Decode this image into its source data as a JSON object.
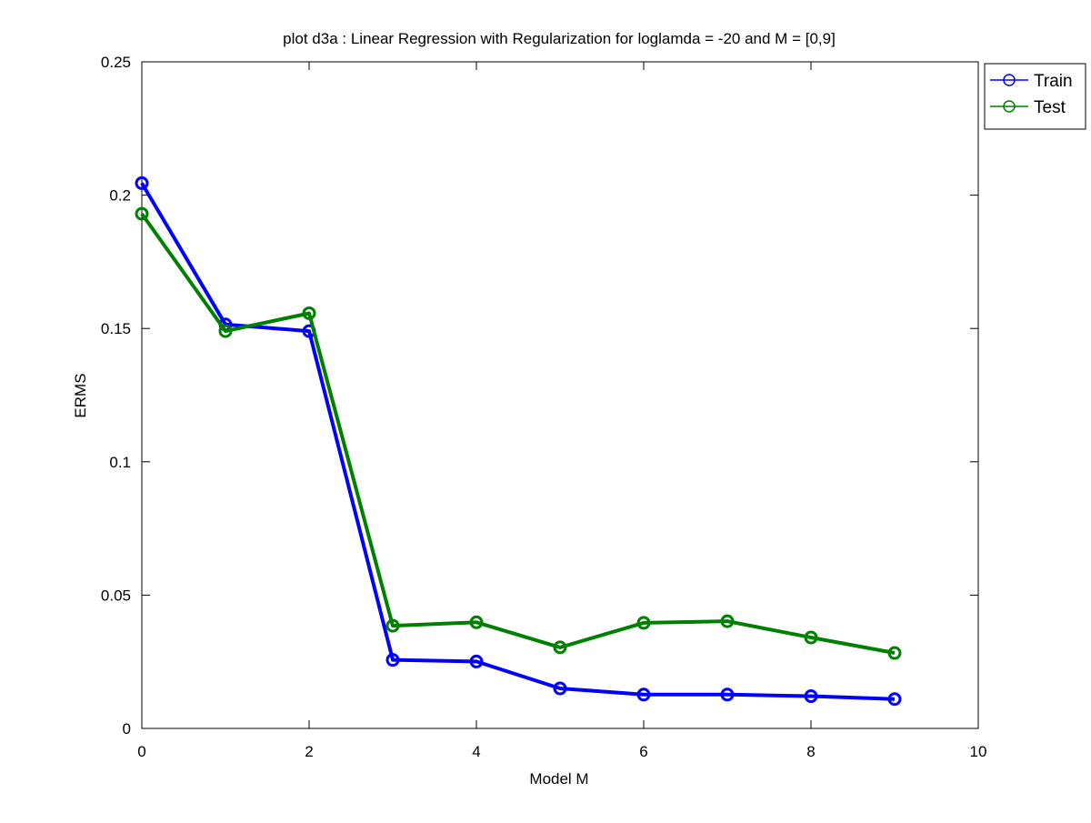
{
  "chart_data": {
    "type": "line",
    "title": "plot d3a : Linear Regression with Regularization for loglamda = -20 and M = [0,9]",
    "xlabel": "Model M",
    "ylabel": "ERMS",
    "xlim": [
      0,
      10
    ],
    "ylim": [
      0,
      0.25
    ],
    "xticks": [
      0,
      2,
      4,
      6,
      8,
      10
    ],
    "xtick_labels": [
      "0",
      "2",
      "4",
      "6",
      "8",
      "10"
    ],
    "yticks": [
      0,
      0.05,
      0.1,
      0.15,
      0.2,
      0.25
    ],
    "ytick_labels": [
      "0",
      "0.05",
      "0.1",
      "0.15",
      "0.2",
      "0.25"
    ],
    "grid": false,
    "legend_position": "outside-top-right",
    "x": [
      0,
      1,
      2,
      3,
      4,
      5,
      6,
      7,
      8,
      9
    ],
    "series": [
      {
        "name": "Train",
        "color": "#0000ff",
        "marker": "circle",
        "values": [
          0.2045,
          0.1515,
          0.149,
          0.0257,
          0.0251,
          0.015,
          0.0127,
          0.0127,
          0.0121,
          0.011
        ]
      },
      {
        "name": "Test",
        "color": "#008000",
        "marker": "circle",
        "values": [
          0.193,
          0.149,
          0.1557,
          0.0385,
          0.0398,
          0.0304,
          0.0396,
          0.0402,
          0.0341,
          0.0283
        ]
      }
    ]
  }
}
